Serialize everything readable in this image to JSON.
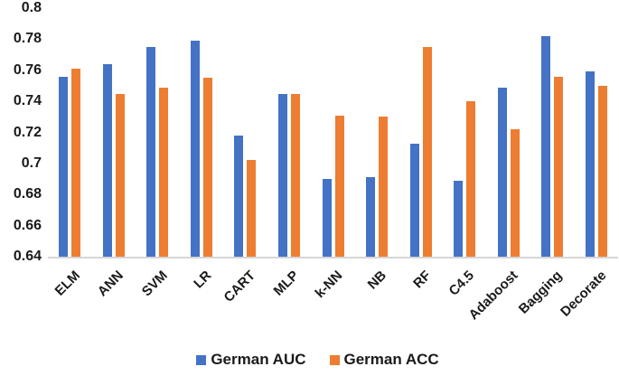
{
  "chart_data": {
    "type": "bar",
    "title": "",
    "categories": [
      "ELM",
      "ANN",
      "SVM",
      "LR",
      "CART",
      "MLP",
      "k-NN",
      "NB",
      "RF",
      "C4.5",
      "Adaboost",
      "Bagging",
      "Decorate"
    ],
    "series": [
      {
        "name": "German AUC",
        "color": "#4472C4",
        "values": [
          0.756,
          0.764,
          0.775,
          0.779,
          0.718,
          0.745,
          0.69,
          0.691,
          0.713,
          0.689,
          0.749,
          0.782,
          0.759
        ]
      },
      {
        "name": "German ACC",
        "color": "#ED7D31",
        "values": [
          0.761,
          0.745,
          0.749,
          0.755,
          0.702,
          0.745,
          0.731,
          0.73,
          0.775,
          0.74,
          0.722,
          0.756,
          0.75
        ]
      }
    ],
    "xlabel": "",
    "ylabel": "",
    "ylim": [
      0.64,
      0.8
    ],
    "yticks": [
      "0.8",
      "0.78",
      "0.76",
      "0.74",
      "0.72",
      "0.7",
      "0.68",
      "0.66",
      "0.64"
    ],
    "grid": false,
    "legend_position": "bottom",
    "axis_line_color": "#d6d6d6",
    "text_color": "#1a1a1a",
    "background_color": "#ffffff"
  }
}
